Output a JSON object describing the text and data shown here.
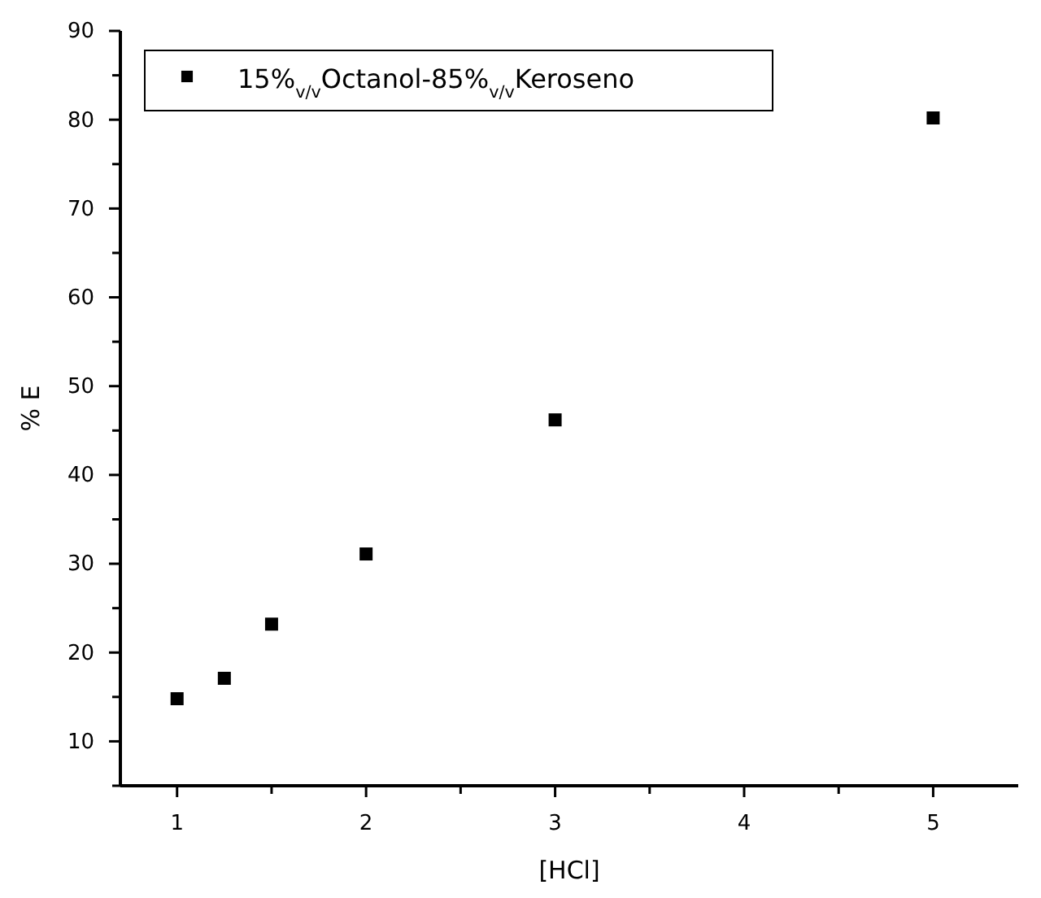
{
  "chart_data": {
    "type": "scatter",
    "xlabel": "[HCl]",
    "ylabel": "% E",
    "x": [
      1,
      1.25,
      1.5,
      2,
      3,
      5
    ],
    "series": [
      {
        "name": "15%$_{v/v}$Octanol-85%$_{v/v}$Keroseno",
        "color": "#000000",
        "values": [
          14.8,
          17.1,
          23.2,
          31.1,
          46.2,
          80.2
        ]
      }
    ],
    "xlim": [
      0.7,
      5.45
    ],
    "xticks": [
      1,
      {
        "value": 1.5,
        "label": null
      },
      2,
      {
        "value": 2.5,
        "label": null
      },
      3,
      {
        "value": 3.5,
        "label": null
      },
      4,
      {
        "value": 4.5,
        "label": null
      },
      5
    ],
    "ylim": [
      5,
      90
    ],
    "yticks": [
      {
        "value": 5,
        "label": null
      },
      10,
      {
        "value": 15,
        "label": null
      },
      20,
      {
        "value": 25,
        "label": null
      },
      30,
      {
        "value": 35,
        "label": null
      },
      40,
      {
        "value": 45,
        "label": null
      },
      50,
      {
        "value": 55,
        "label": null
      },
      60,
      {
        "value": 65,
        "label": null
      },
      70,
      {
        "value": 75,
        "label": null
      },
      80,
      {
        "value": 85,
        "label": null
      },
      90
    ],
    "marker": "square",
    "grid": false,
    "legend": "top left"
  }
}
